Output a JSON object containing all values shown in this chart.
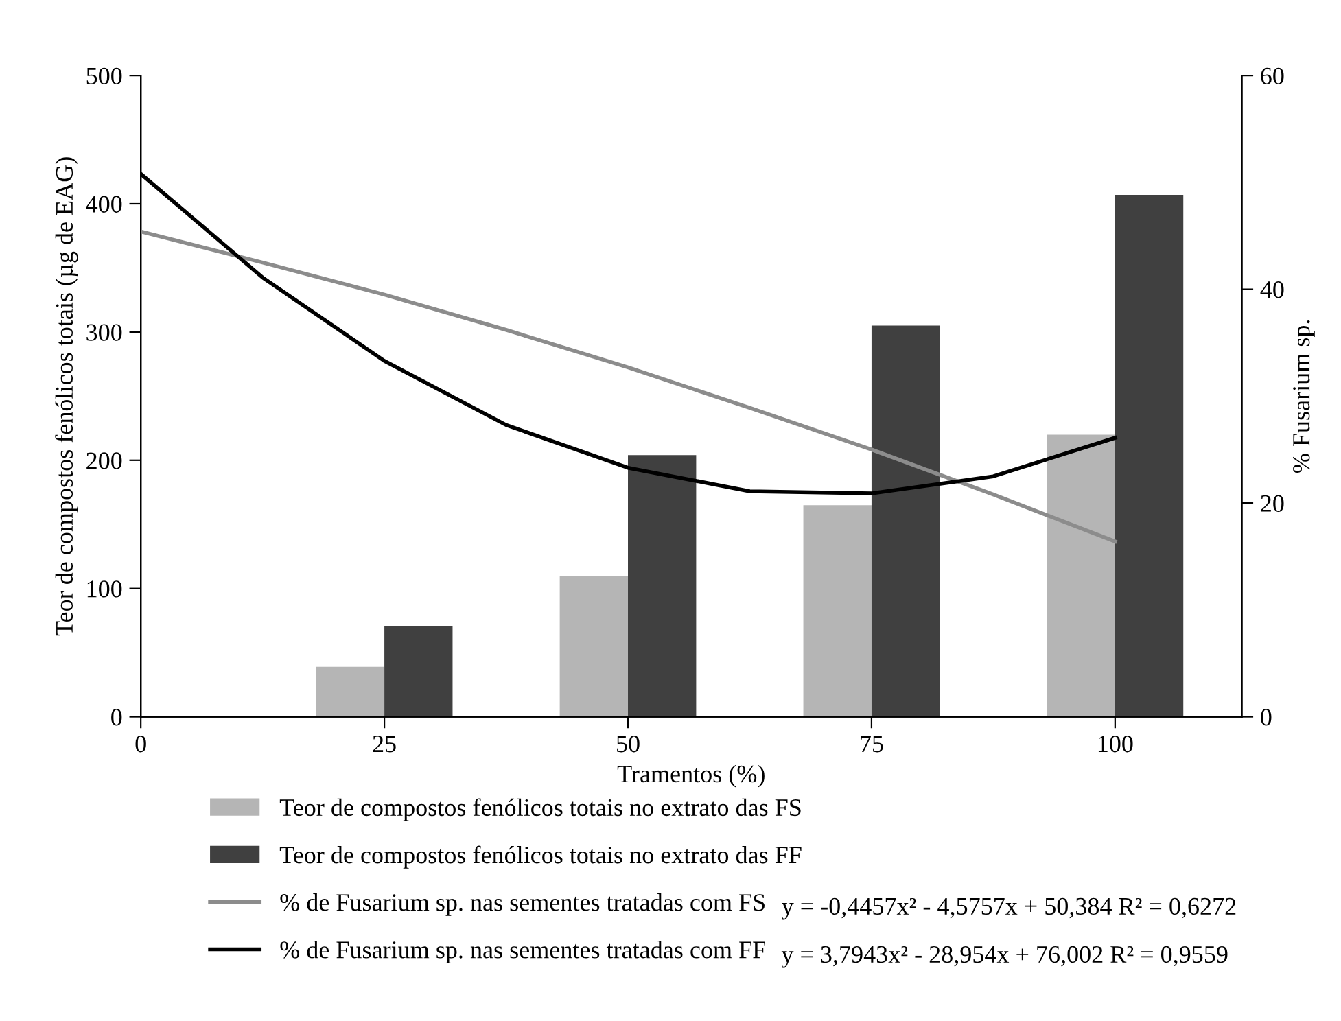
{
  "chart_data": {
    "type": "bar",
    "xlabel": "Tramentos (%)",
    "ylabel": "Teor de compostos fenólicos totais (µg de EAG)",
    "y2label": "% Fusarium sp.",
    "xlim": [
      0,
      113
    ],
    "xticks": [
      0,
      25,
      50,
      75,
      100
    ],
    "ylim": [
      0,
      500
    ],
    "yticks": [
      0,
      100,
      200,
      300,
      400,
      500
    ],
    "y2lim": [
      0,
      60
    ],
    "y2ticks": [
      0,
      20,
      40,
      60
    ],
    "grid": false,
    "legend": "bottom",
    "series": [
      {
        "name": "Teor de compostos fenólicos totais no extrato das FS",
        "color": "#b5b5b5",
        "x": [
          25,
          50,
          75,
          100
        ],
        "values": [
          39,
          110,
          165,
          220
        ]
      },
      {
        "name": "Teor de compostos fenólicos totais no extrato das FF",
        "color": "#404040",
        "x": [
          25,
          50,
          75,
          100
        ],
        "values": [
          71,
          204,
          305,
          407
        ]
      },
      {
        "name": "% de Fusarium sp. nas sementes tratadas com FS",
        "type": "line",
        "axis": "y2",
        "color": "#8c8c8c",
        "x": [
          0,
          12.5,
          25,
          37.5,
          50,
          62.5,
          75,
          87.5,
          100
        ],
        "values": [
          45.4,
          42.5,
          39.5,
          36.2,
          32.7,
          28.9,
          25.0,
          20.8,
          16.4
        ]
      },
      {
        "name": "% de Fusarium sp. nas sementes tratadas com FF",
        "type": "line",
        "axis": "y2",
        "color": "#000000",
        "x": [
          0,
          12.5,
          25,
          37.5,
          50,
          62.5,
          75,
          87.5,
          100
        ],
        "values": [
          50.8,
          41.1,
          33.3,
          27.3,
          23.3,
          21.1,
          20.9,
          22.5,
          26.1
        ]
      }
    ],
    "annotations": [
      "y = -0,4457x² - 4,5757x + 50,384 R² = 0,6272",
      "y = 3,7943x² - 28,954x + 76,002 R² = 0,9559"
    ]
  }
}
